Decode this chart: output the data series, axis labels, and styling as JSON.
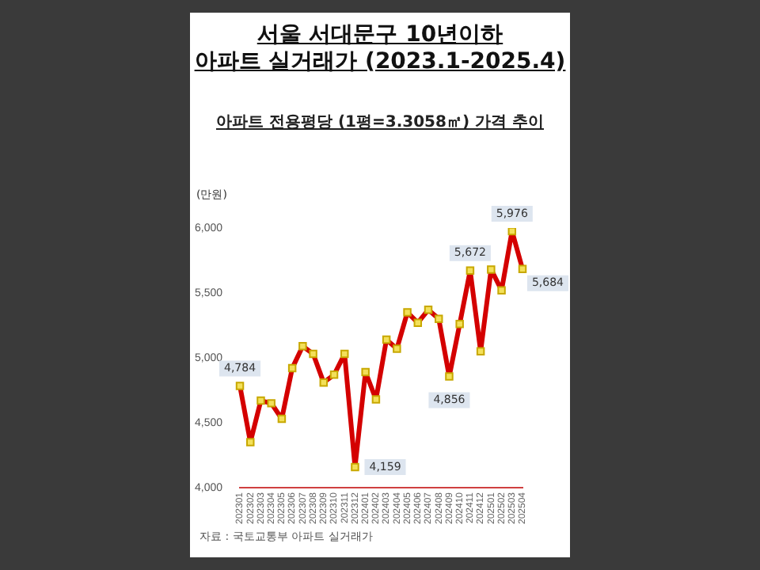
{
  "chart_data": {
    "type": "line",
    "title": "서울 서대문구 10년이하\n아파트 실거래가 (2023.1-2025.4)",
    "subtitle": "아파트 전용평당 (1평=3.3058㎡) 가격 추이",
    "ylabel": "(만원)",
    "annotations": [
      "자료 : 국토교통부 아파트 실거래가"
    ],
    "categories": [
      "202301",
      "202302",
      "202303",
      "202304",
      "202305",
      "202306",
      "202307",
      "202308",
      "202309",
      "202310",
      "202311",
      "202312",
      "202401",
      "202402",
      "202403",
      "202404",
      "202405",
      "202406",
      "202407",
      "202408",
      "202409",
      "202410",
      "202411",
      "202412",
      "202501",
      "202502",
      "202503",
      "202504"
    ],
    "series": [
      {
        "color": "#d40000",
        "values": [
          4784,
          4350,
          4670,
          4650,
          4530,
          4920,
          5090,
          5030,
          4810,
          4870,
          5030,
          4159,
          4890,
          4680,
          5140,
          5070,
          5350,
          5270,
          5370,
          5300,
          4856,
          5260,
          5672,
          5050,
          5680,
          5520,
          5976,
          5684
        ],
        "value_labels": [
          "4,784",
          null,
          null,
          null,
          null,
          null,
          null,
          null,
          null,
          null,
          null,
          "4,159",
          null,
          null,
          null,
          null,
          null,
          null,
          null,
          null,
          "4,856",
          null,
          "5,672",
          null,
          null,
          null,
          "5,976",
          "5,684"
        ]
      }
    ],
    "ylim": [
      4000,
      6000
    ],
    "yticks": [
      {
        "value": 4000,
        "label": "4,000"
      },
      {
        "value": 4500,
        "label": "4,500"
      },
      {
        "value": 5000,
        "label": "5,000"
      },
      {
        "value": 5500,
        "label": "5,500"
      },
      {
        "value": 6000,
        "label": "6,000"
      }
    ],
    "marker": "square",
    "line_style": "solid",
    "grid": false,
    "legend": false
  }
}
